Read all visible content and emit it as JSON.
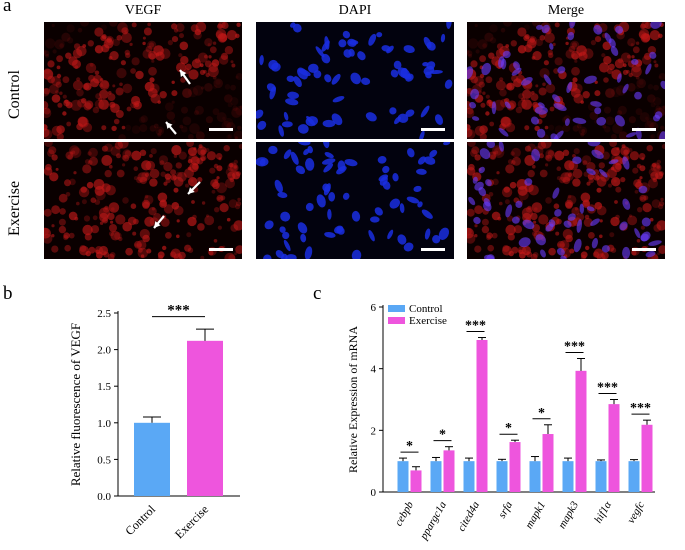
{
  "panel_letters": [
    "a",
    "b",
    "c"
  ],
  "micrographs": {
    "column_titles": [
      "VEGF",
      "DAPI",
      "Merge"
    ],
    "row_labels": [
      "Control",
      "Exercise"
    ],
    "channel_colors": {
      "vegf": "#c01818",
      "dapi": "#1a2ee0",
      "background": "#0a0000"
    }
  },
  "chart_data": [
    {
      "type": "bar",
      "categories": [
        "Control",
        "Exercise"
      ],
      "values": [
        1.0,
        2.12
      ],
      "errors": [
        0.08,
        0.16
      ],
      "colors": [
        "#5aa8f5",
        "#ee55dd"
      ],
      "significance": "***",
      "ylabel": "Relative fluorescence of VEGF",
      "ylim": [
        0,
        2.5
      ],
      "yticks": [
        "0.0",
        "0.5",
        "1.0",
        "1.5",
        "2.0",
        "2.5"
      ],
      "grid": false
    },
    {
      "type": "bar",
      "categories": [
        "cebpb",
        "ppargc1a",
        "cited4a",
        "srfa",
        "mapk1",
        "mapk3",
        "hif1α",
        "vegfc"
      ],
      "series": [
        {
          "name": "Control",
          "color": "#5aa8f5",
          "values": [
            1.0,
            1.0,
            1.0,
            1.0,
            1.0,
            1.0,
            1.0,
            1.0
          ],
          "errors": [
            0.1,
            0.12,
            0.1,
            0.06,
            0.15,
            0.1,
            0.04,
            0.05
          ]
        },
        {
          "name": "Exercise",
          "color": "#ee55dd",
          "values": [
            0.7,
            1.35,
            4.93,
            1.62,
            1.88,
            3.93,
            2.85,
            2.18
          ],
          "errors": [
            0.12,
            0.12,
            0.08,
            0.06,
            0.3,
            0.4,
            0.15,
            0.15
          ]
        }
      ],
      "significance": [
        "*",
        "*",
        "***",
        "*",
        "*",
        "***",
        "***",
        "***"
      ],
      "ylabel": "Relative Expression of mRNA",
      "ylim": [
        0,
        6
      ],
      "yticks": [
        "0",
        "2",
        "4",
        "6"
      ],
      "legend_position": "top-left",
      "grid": false
    }
  ]
}
